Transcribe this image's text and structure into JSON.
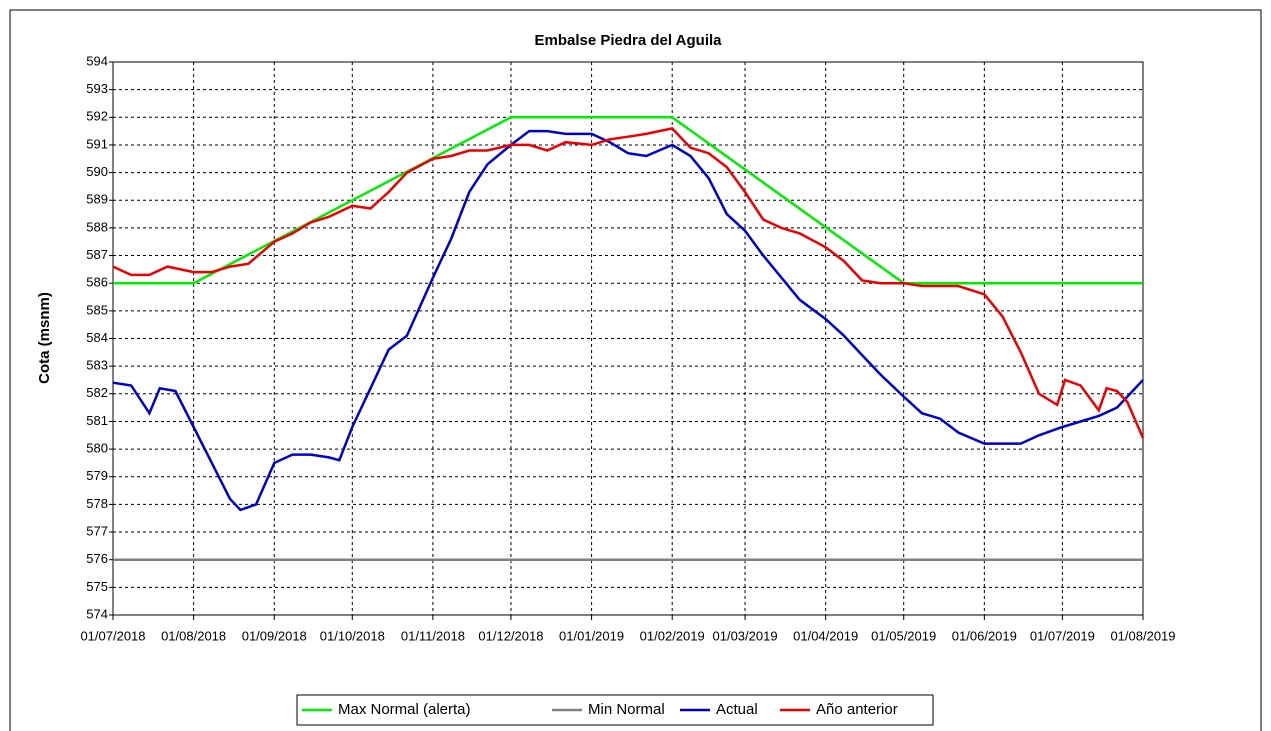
{
  "chart_data": {
    "type": "line",
    "title": "Embalse Piedra del Aguila",
    "ylabel": "Cota (msnm)",
    "xlim": [
      "01/07/2018",
      "01/08/2019"
    ],
    "xticks": [
      "01/07/2018",
      "01/08/2018",
      "01/09/2018",
      "01/10/2018",
      "01/11/2018",
      "01/12/2018",
      "01/01/2019",
      "01/02/2019",
      "01/03/2019",
      "01/04/2019",
      "01/05/2019",
      "01/06/2019",
      "01/07/2019",
      "01/08/2019"
    ],
    "ylim": [
      574,
      594
    ],
    "yticks": [
      574,
      575,
      576,
      577,
      578,
      579,
      580,
      581,
      582,
      583,
      584,
      585,
      586,
      587,
      588,
      589,
      590,
      591,
      592,
      593,
      594
    ],
    "grid": true,
    "legend": "bottom",
    "series": [
      {
        "name": "Max Normal (alerta)",
        "color": "#00ee00",
        "x": [
          "01/07/2018",
          "01/08/2018",
          "01/12/2018",
          "01/02/2019",
          "01/05/2019",
          "01/08/2019"
        ],
        "values": [
          586,
          586,
          592,
          592,
          586,
          586
        ]
      },
      {
        "name": "Min Normal",
        "color": "#808080",
        "x": [
          "01/07/2018",
          "01/08/2019"
        ],
        "values": [
          576,
          576
        ]
      },
      {
        "name": "Actual",
        "color": "#0000cc",
        "x": [
          "01/07/2018",
          "08/07/2018",
          "15/07/2018",
          "19/07/2018",
          "25/07/2018",
          "01/08/2018",
          "08/08/2018",
          "15/08/2018",
          "19/08/2018",
          "25/08/2018",
          "01/09/2018",
          "08/09/2018",
          "15/09/2018",
          "22/09/2018",
          "26/09/2018",
          "01/10/2018",
          "08/10/2018",
          "15/10/2018",
          "22/10/2018",
          "01/11/2018",
          "08/11/2018",
          "15/11/2018",
          "22/11/2018",
          "01/12/2018",
          "08/12/2018",
          "15/12/2018",
          "22/12/2018",
          "01/01/2019",
          "08/01/2019",
          "15/01/2019",
          "22/01/2019",
          "01/02/2019",
          "08/02/2019",
          "15/02/2019",
          "22/02/2019",
          "01/03/2019",
          "08/03/2019",
          "15/03/2019",
          "22/03/2019",
          "01/04/2019",
          "08/04/2019",
          "15/04/2019",
          "22/04/2019",
          "01/05/2019",
          "08/05/2019",
          "15/05/2019",
          "22/05/2019",
          "01/06/2019",
          "08/06/2019",
          "15/06/2019",
          "22/06/2019",
          "01/07/2019",
          "08/07/2019",
          "15/07/2019",
          "22/07/2019",
          "01/08/2019"
        ],
        "values": [
          582.4,
          582.3,
          581.3,
          582.2,
          582.1,
          580.8,
          579.5,
          578.2,
          577.8,
          578.0,
          579.5,
          579.8,
          579.8,
          579.7,
          579.6,
          580.8,
          582.2,
          583.6,
          584.1,
          586.2,
          587.6,
          589.3,
          590.3,
          591.0,
          591.5,
          591.5,
          591.4,
          591.4,
          591.1,
          590.7,
          590.6,
          591.0,
          590.6,
          589.8,
          588.5,
          587.9,
          587.0,
          586.2,
          585.4,
          584.7,
          584.1,
          583.4,
          582.7,
          581.9,
          581.3,
          581.1,
          580.6,
          580.2,
          580.2,
          580.2,
          580.5,
          580.8,
          581.0,
          581.2,
          581.5,
          582.5
        ]
      },
      {
        "name": "Año anterior",
        "color": "#ee0000",
        "x": [
          "01/07/2018",
          "08/07/2018",
          "15/07/2018",
          "22/07/2018",
          "01/08/2018",
          "08/08/2018",
          "15/08/2018",
          "22/08/2018",
          "01/09/2018",
          "08/09/2018",
          "15/09/2018",
          "22/09/2018",
          "01/10/2018",
          "08/10/2018",
          "15/10/2018",
          "22/10/2018",
          "01/11/2018",
          "08/11/2018",
          "15/11/2018",
          "22/11/2018",
          "01/12/2018",
          "08/12/2018",
          "15/12/2018",
          "22/12/2018",
          "01/01/2019",
          "08/01/2019",
          "15/01/2019",
          "22/01/2019",
          "01/02/2019",
          "08/02/2019",
          "15/02/2019",
          "22/02/2019",
          "01/03/2019",
          "08/03/2019",
          "15/03/2019",
          "22/03/2019",
          "01/04/2019",
          "08/04/2019",
          "15/04/2019",
          "22/04/2019",
          "01/05/2019",
          "08/05/2019",
          "15/05/2019",
          "22/05/2019",
          "01/06/2019",
          "08/06/2019",
          "15/06/2019",
          "22/06/2019",
          "29/06/2019",
          "02/07/2019",
          "08/07/2019",
          "15/07/2019",
          "18/07/2019",
          "22/07/2019",
          "26/07/2019",
          "01/08/2019"
        ],
        "values": [
          586.6,
          586.3,
          586.3,
          586.6,
          586.4,
          586.4,
          586.6,
          586.7,
          587.5,
          587.8,
          588.2,
          588.4,
          588.8,
          588.7,
          589.3,
          590.0,
          590.5,
          590.6,
          590.8,
          590.8,
          591.0,
          591.0,
          590.8,
          591.1,
          591.0,
          591.2,
          591.3,
          591.4,
          591.6,
          590.9,
          590.7,
          590.2,
          589.3,
          588.3,
          588.0,
          587.8,
          587.3,
          586.8,
          586.1,
          586.0,
          586.0,
          585.9,
          585.9,
          585.9,
          585.6,
          584.8,
          583.5,
          582.0,
          581.6,
          582.5,
          582.3,
          581.4,
          582.2,
          582.1,
          581.7,
          580.4
        ]
      }
    ]
  }
}
